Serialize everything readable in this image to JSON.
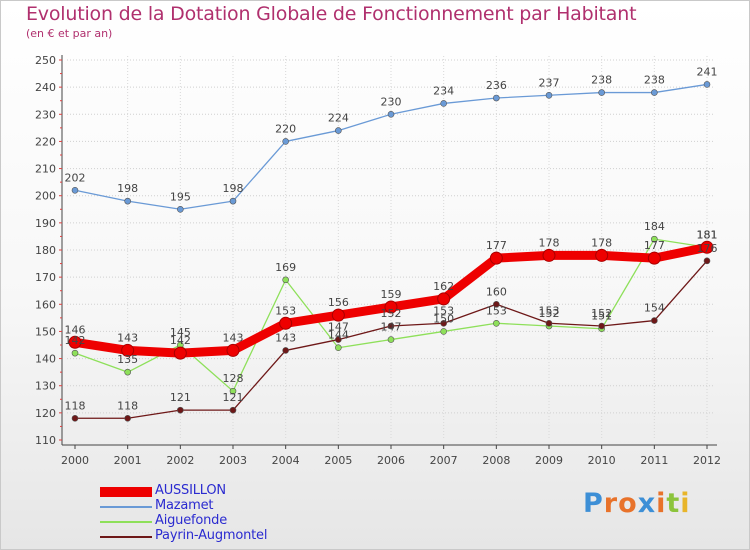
{
  "header": {
    "title": "Evolution de la Dotation Globale de Fonctionnement par Habitant",
    "subtitle": "(en € et par an)"
  },
  "logo": {
    "letters": [
      "P",
      "r",
      "o",
      "x",
      "i",
      "t",
      "i"
    ],
    "colors": [
      "#3d8fd6",
      "#e8722a",
      "#e8722a",
      "#3d8fd6",
      "#e8722a",
      "#8cc43c",
      "#e8b52a"
    ]
  },
  "chart_data": {
    "type": "line",
    "title": "Evolution de la Dotation Globale de Fonctionnement par Habitant",
    "subtitle": "(en € et par an)",
    "xlabel": "",
    "ylabel": "",
    "ylim": [
      110,
      250
    ],
    "yticks": [
      "110",
      "120",
      "130",
      "140",
      "150",
      "160",
      "170",
      "180",
      "190",
      "200",
      "210",
      "220",
      "230",
      "240",
      "250"
    ],
    "categories": [
      "2000",
      "2001",
      "2002",
      "2003",
      "2004",
      "2005",
      "2006",
      "2007",
      "2008",
      "2009",
      "2010",
      "2011",
      "2012"
    ],
    "grid": true,
    "legend": "bottom-left",
    "series": [
      {
        "name": "Mazamet",
        "color": "#6a9ad6",
        "values": [
          202,
          198,
          195,
          198,
          220,
          224,
          230,
          234,
          236,
          237,
          238,
          238,
          241
        ],
        "labels": [
          "202",
          "198",
          "195",
          "198",
          "220",
          "224",
          "230",
          "234",
          "236",
          "237",
          "238",
          "238",
          "241"
        ]
      },
      {
        "name": "Aiguefonde",
        "color": "#8ee05a",
        "values": [
          142,
          135,
          145,
          128,
          169,
          144,
          147,
          150,
          153,
          152,
          151,
          184,
          181
        ],
        "labels": [
          "142",
          "135",
          "145",
          "128",
          "169",
          "144",
          "147",
          "150",
          "153",
          "152",
          "151",
          "184",
          "181"
        ]
      },
      {
        "name": "Payrin-Augmontel",
        "color": "#6e1818",
        "values": [
          118,
          118,
          121,
          121,
          143,
          147,
          152,
          153,
          160,
          153,
          152,
          154,
          176
        ],
        "labels": [
          "118",
          "118",
          "121",
          "121",
          "143",
          "147",
          "152",
          "153",
          "160",
          "153",
          "152",
          "154",
          "176"
        ]
      },
      {
        "name": "AUSSILLON",
        "color": "#ee0000",
        "values": [
          146,
          143,
          142,
          143,
          153,
          156,
          159,
          162,
          177,
          178,
          178,
          177,
          181
        ],
        "labels": [
          "146",
          "143",
          "142",
          "143",
          "153",
          "156",
          "159",
          "162",
          "177",
          "178",
          "178",
          "177",
          "181"
        ]
      }
    ],
    "legend_entries": [
      {
        "name": "AUSSILLON",
        "color": "#ee0000",
        "text_color": "#2b2bd0",
        "thickness": 10
      },
      {
        "name": "Mazamet",
        "color": "#6a9ad6",
        "text_color": "#2b2bd0",
        "thickness": 2
      },
      {
        "name": "Aiguefonde",
        "color": "#8ee05a",
        "text_color": "#2b2bd0",
        "thickness": 2
      },
      {
        "name": "Payrin-Augmontel",
        "color": "#6e1818",
        "text_color": "#2b2bd0",
        "thickness": 2
      }
    ]
  }
}
